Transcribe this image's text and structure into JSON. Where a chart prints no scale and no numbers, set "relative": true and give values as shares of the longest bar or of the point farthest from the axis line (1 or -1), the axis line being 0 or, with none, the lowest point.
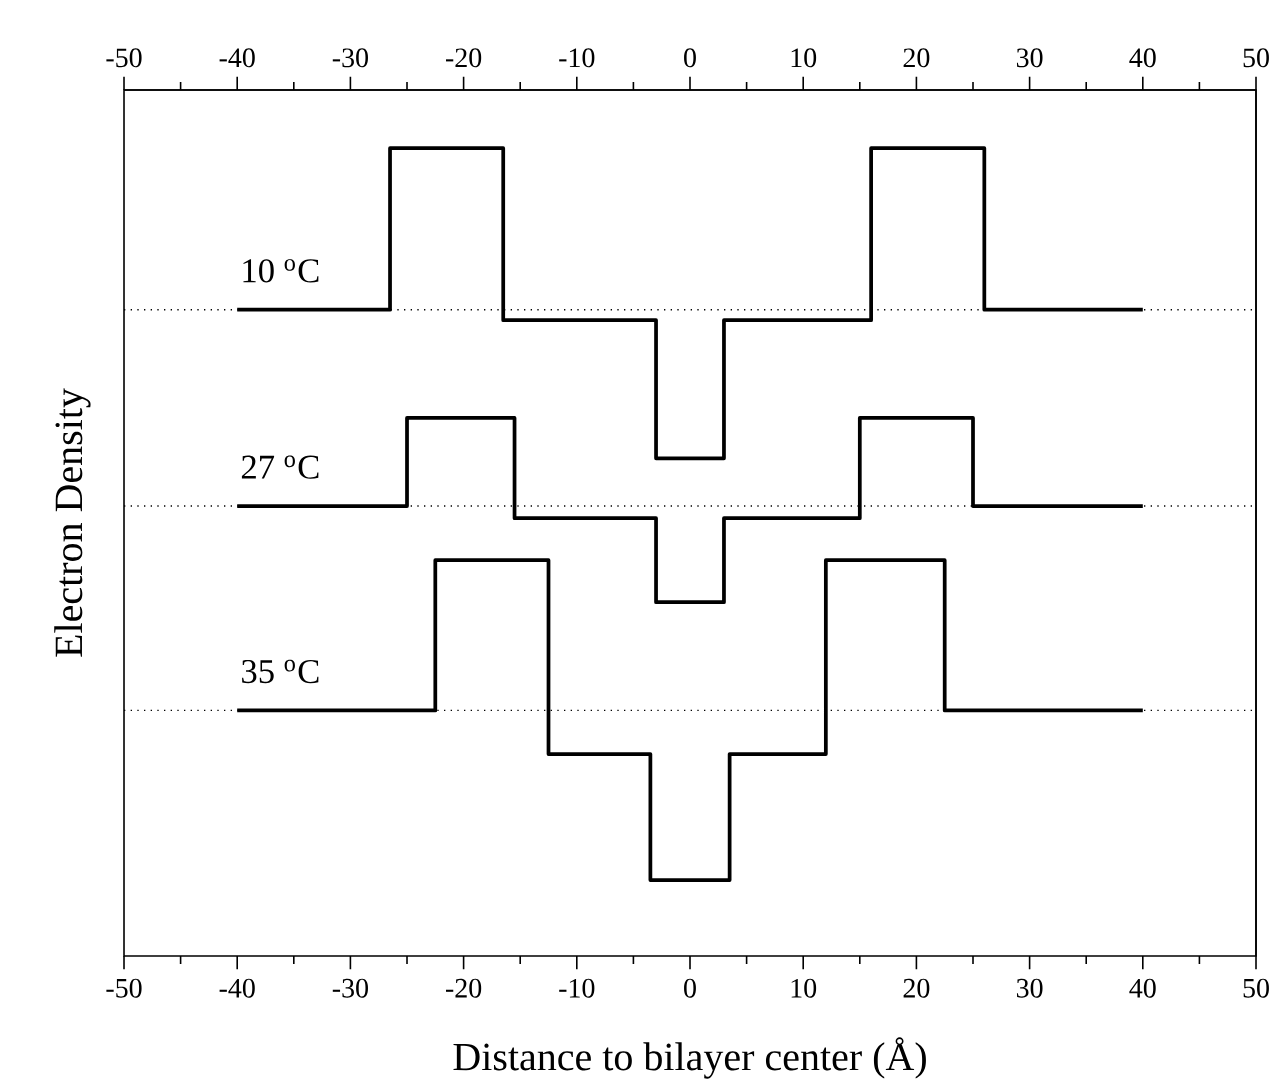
{
  "chart_data": {
    "type": "step",
    "xlabel": "Distance to bilayer center (Å)",
    "ylabel": "Electron Density",
    "relative": true,
    "xlim": [
      -50,
      50
    ],
    "xticks": [
      -50,
      -40,
      -30,
      -20,
      -10,
      0,
      10,
      20,
      30,
      40,
      50
    ],
    "x2lim": [
      -50,
      50
    ],
    "x2ticks": [
      -50,
      -40,
      -30,
      -20,
      -10,
      0,
      10,
      20,
      30,
      40,
      50
    ],
    "grid": false,
    "marker": "none",
    "line_style": "solid",
    "ref_lines": [
      {
        "axis": "y",
        "value": 0.8,
        "color": "#000000",
        "line_style": "dotted"
      },
      {
        "axis": "y",
        "value": 0.557,
        "color": "#000000",
        "line_style": "dotted"
      },
      {
        "axis": "y",
        "value": 0.304,
        "color": "#000000",
        "line_style": "dotted"
      }
    ],
    "series": [
      {
        "name": "10 $^{o}$C",
        "color": "#000000",
        "x": [
          -40,
          -26.5,
          -16.5,
          -3,
          3,
          16,
          26,
          40
        ],
        "values": [
          0.8,
          1,
          0.787,
          0.616,
          0.787,
          1,
          0.8,
          0.8
        ]
      },
      {
        "name": "27 $^{o}$C",
        "color": "#000000",
        "x": [
          -40,
          -25,
          -15.5,
          -3,
          3,
          15,
          25,
          40
        ],
        "values": [
          0.557,
          0.666,
          0.542,
          0.438,
          0.542,
          0.666,
          0.557,
          0.557
        ]
      },
      {
        "name": "35 $^{o}$C",
        "color": "#000000",
        "x": [
          -40,
          -22.5,
          -12.5,
          -3.5,
          3.5,
          12,
          22.5,
          40
        ],
        "values": [
          0.304,
          0.49,
          0.25,
          0.094,
          0.25,
          0.49,
          0.304,
          0.304
        ]
      }
    ]
  }
}
